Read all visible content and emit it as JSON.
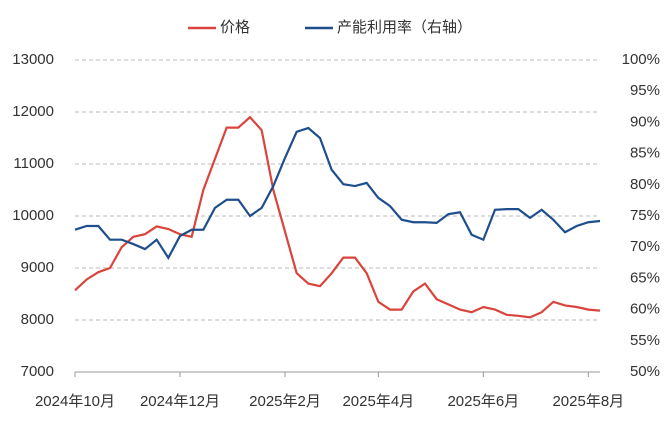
{
  "chart_data": {
    "type": "line",
    "categories": [
      "2024年10月",
      null,
      null,
      null,
      null,
      null,
      null,
      null,
      null,
      "2024年12月",
      null,
      null,
      null,
      null,
      null,
      null,
      null,
      null,
      "2025年2月",
      null,
      null,
      null,
      null,
      null,
      null,
      null,
      "2025年4月",
      null,
      null,
      null,
      null,
      null,
      null,
      null,
      null,
      "2025年6月",
      null,
      null,
      null,
      null,
      null,
      null,
      null,
      null,
      "2025年8月",
      null
    ],
    "series": [
      {
        "name": "价格",
        "color": "#d9443c",
        "axis": "y",
        "values": [
          8570,
          8780,
          8920,
          9000,
          9400,
          9600,
          9650,
          9800,
          9750,
          9650,
          9600,
          10500,
          11100,
          11700,
          11700,
          11900,
          11650,
          10500,
          9700,
          8900,
          8700,
          8650,
          8900,
          9200,
          9200,
          8900,
          8350,
          8200,
          8200,
          8550,
          8700,
          8400,
          8300,
          8200,
          8150,
          8250,
          8200,
          8100,
          8080,
          8050,
          8150,
          8350,
          8280,
          8250,
          8200,
          8180
        ]
      },
      {
        "name": "产能利用率（右轴）",
        "color": "#1f4e8c",
        "axis": "y2",
        "values": [
          72.8,
          73.4,
          73.4,
          71.2,
          71.2,
          70.5,
          69.7,
          71.2,
          68.3,
          71.8,
          72.8,
          72.8,
          76.3,
          77.6,
          77.6,
          75,
          76.3,
          79.8,
          84.3,
          88.5,
          89.1,
          87.5,
          82.4,
          80.1,
          79.8,
          80.3,
          77.9,
          76.6,
          74.4,
          74,
          74,
          73.9,
          75.3,
          75.6,
          72,
          71.2,
          76,
          76.1,
          76.1,
          74.7,
          76,
          74.4,
          72.4,
          73.4,
          74,
          74.2
        ]
      }
    ],
    "ylim": [
      7000,
      13000
    ],
    "yticks": [
      7000,
      8000,
      9000,
      10000,
      11000,
      12000,
      13000
    ],
    "y2lim": [
      50,
      100
    ],
    "y2ticks": [
      {
        "value": 50,
        "label": "50%"
      },
      {
        "value": 55,
        "label": "55%"
      },
      {
        "value": 60,
        "label": "60%"
      },
      {
        "value": 65,
        "label": "65%"
      },
      {
        "value": 70,
        "label": "70%"
      },
      {
        "value": 75,
        "label": "75%"
      },
      {
        "value": 80,
        "label": "80%"
      },
      {
        "value": 85,
        "label": "85%"
      },
      {
        "value": 90,
        "label": "90%"
      },
      {
        "value": 95,
        "label": "95%"
      },
      {
        "value": 100,
        "label": "100%"
      }
    ],
    "grid": true,
    "legend": "top"
  }
}
